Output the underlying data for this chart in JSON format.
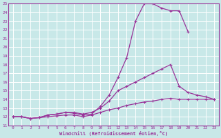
{
  "title": "",
  "xlabel": "Windchill (Refroidissement éolien,°C)",
  "xlim": [
    -0.5,
    23.5
  ],
  "ylim": [
    11,
    25
  ],
  "xticks": [
    0,
    1,
    2,
    3,
    4,
    5,
    6,
    7,
    8,
    9,
    10,
    11,
    12,
    13,
    14,
    15,
    16,
    17,
    18,
    19,
    20,
    21,
    22,
    23
  ],
  "yticks": [
    11,
    12,
    13,
    14,
    15,
    16,
    17,
    18,
    19,
    20,
    21,
    22,
    23,
    24,
    25
  ],
  "bg_color": "#c8e8e8",
  "grid_color": "#ffffff",
  "line_color": "#993399",
  "lines": [
    {
      "x": [
        0,
        1,
        2,
        3,
        4,
        5,
        6,
        7,
        8,
        9,
        10,
        11,
        12,
        13,
        14,
        15,
        16,
        17,
        18,
        19,
        20
      ],
      "y": [
        12,
        12,
        11.8,
        11.9,
        12.2,
        12.3,
        12.5,
        12.4,
        12.2,
        12.3,
        13.2,
        14.5,
        16.5,
        18.8,
        23.0,
        25.0,
        25.0,
        24.5,
        24.2,
        24.2,
        21.8
      ]
    },
    {
      "x": [
        0,
        1,
        2,
        3,
        4,
        5,
        6,
        7,
        8,
        9,
        10,
        11,
        12,
        13,
        14,
        15,
        16,
        17,
        18,
        19,
        20,
        21,
        22,
        23
      ],
      "y": [
        12,
        12,
        11.8,
        11.9,
        12.2,
        12.3,
        12.5,
        12.5,
        12.3,
        12.5,
        13.0,
        13.8,
        15.0,
        15.5,
        16.0,
        16.5,
        17.0,
        17.5,
        18.0,
        15.5,
        14.8,
        14.5,
        14.3,
        14.0
      ]
    },
    {
      "x": [
        0,
        1,
        2,
        3,
        4,
        5,
        6,
        7,
        8,
        9,
        10,
        11,
        12,
        13,
        14,
        15,
        16,
        17,
        18,
        19,
        20,
        21,
        22,
        23
      ],
      "y": [
        12,
        12,
        11.8,
        11.9,
        12.0,
        12.1,
        12.2,
        12.2,
        12.0,
        12.2,
        12.5,
        12.8,
        13.0,
        13.3,
        13.5,
        13.7,
        13.8,
        14.0,
        14.1,
        14.0,
        14.0,
        14.0,
        14.0,
        14.0
      ]
    }
  ]
}
